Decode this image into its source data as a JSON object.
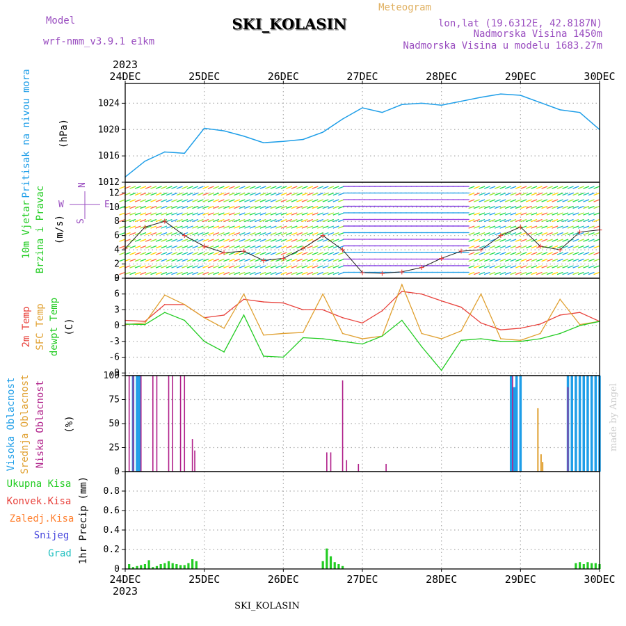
{
  "header": {
    "model_label": "Model",
    "model_name": "wrf-nmm_v3.9.1  e1km",
    "title": "SKI_KOLASIN",
    "meteogram": "Meteogram",
    "coords": "lon,lat (19.6312E, 42.8187N)",
    "altitude": "Nadmorska Visina 1450m",
    "model_altitude": "Nadmorska Visina u modelu 1683.27m"
  },
  "footer": {
    "station": "SKI_KOLASIN",
    "credit": "made by Angel"
  },
  "axis": {
    "year": "2023",
    "dates": [
      "24DEC",
      "25DEC",
      "26DEC",
      "27DEC",
      "28DEC",
      "29DEC",
      "30DEC"
    ]
  },
  "panel_labels": {
    "pressure": {
      "name": "Pritisak na nivou mora",
      "unit": "(hPa)"
    },
    "wind": {
      "name1": "10m Vjetar",
      "name2": "Brzina i Pravac",
      "unit": "(m/s)",
      "compass": {
        "n": "N",
        "s": "S",
        "w": "W",
        "e": "E"
      }
    },
    "temp": {
      "t2m": "2m Temp",
      "sfc": "SFC Temp",
      "dew": "dewpt Temp",
      "unit": "(C)"
    },
    "cloud": {
      "high": "Visoka Oblacnost",
      "mid": "Srednja Oblacnost",
      "low": "Niska Oblacnost",
      "unit": "(%)"
    },
    "precip": {
      "total": "Ukupna Kisa",
      "conv": "Konvek.Kisa",
      "frz": "Zaledj.Kisa",
      "snow": "Snijeg",
      "hail": "Grad",
      "unit": "1hr Precip (mm)"
    }
  },
  "colors": {
    "pressure": "#1e9ee8",
    "temp2m": "#e8403a",
    "sfc": "#e0a030",
    "dew": "#22cc22",
    "cloud_high": "#1e9ee8",
    "cloud_mid": "#e0a030",
    "cloud_low": "#b0208a",
    "precip_total": "#22cc22",
    "precip_conv": "#e8403a",
    "precip_frz": "#ff8030",
    "snow": "#4444dd",
    "hail": "#22c0c0",
    "wind_speed": "#222222"
  },
  "chart_data": [
    {
      "type": "line",
      "panel": "pressure",
      "ylabel": "(hPa)",
      "ylim": [
        1012,
        1027
      ],
      "yticks": [
        1012,
        1016,
        1020,
        1024
      ],
      "x_days": [
        0,
        0.25,
        0.5,
        0.75,
        1,
        1.25,
        1.5,
        1.75,
        2,
        2.25,
        2.5,
        2.75,
        3,
        3.25,
        3.5,
        3.75,
        4,
        4.25,
        4.5,
        4.75,
        5,
        5.25,
        5.5,
        5.75,
        6
      ],
      "series": [
        {
          "values": [
            1012.8,
            1015.2,
            1016.6,
            1016.4,
            1020.2,
            1019.8,
            1019.0,
            1018.0,
            1018.2,
            1018.5,
            1019.6,
            1021.6,
            1023.3,
            1022.6,
            1023.8,
            1024.0,
            1023.7,
            1024.3,
            1024.9,
            1025.4,
            1025.2,
            1024.1,
            1023.0,
            1022.6,
            1020.0
          ]
        }
      ]
    },
    {
      "type": "line",
      "panel": "wind",
      "ylabel": "(m/s)",
      "ylim": [
        0,
        13.5
      ],
      "yticks": [
        0,
        2,
        4,
        6,
        8,
        10,
        12
      ],
      "x_days": [
        0,
        0.25,
        0.5,
        0.75,
        1,
        1.25,
        1.5,
        1.75,
        2,
        2.25,
        2.5,
        2.75,
        3,
        3.25,
        3.5,
        3.75,
        4,
        4.25,
        4.5,
        4.75,
        5,
        5.25,
        5.5,
        5.75,
        6
      ],
      "series": [
        {
          "values": [
            4.2,
            7.2,
            8.0,
            6.0,
            4.5,
            3.6,
            3.8,
            2.5,
            2.8,
            4.2,
            6.0,
            4.0,
            0.8,
            0.7,
            0.9,
            1.5,
            2.8,
            3.8,
            4.0,
            6.0,
            7.2,
            4.5,
            4.0,
            6.5,
            6.8
          ]
        }
      ]
    },
    {
      "type": "line",
      "panel": "temperature",
      "ylabel": "(C)",
      "ylim": [
        -9.5,
        9
      ],
      "yticks": [
        -9,
        -6,
        -3,
        0,
        3,
        6,
        9
      ],
      "x_days": [
        0,
        0.25,
        0.5,
        0.75,
        1,
        1.25,
        1.5,
        1.75,
        2,
        2.25,
        2.5,
        2.75,
        3,
        3.25,
        3.5,
        3.75,
        4,
        4.25,
        4.5,
        4.75,
        5,
        5.25,
        5.5,
        5.75,
        6
      ],
      "series": [
        {
          "name": "2m Temp",
          "values": [
            1.0,
            0.8,
            4.0,
            4.0,
            1.5,
            2.0,
            5.0,
            4.5,
            4.3,
            3.0,
            3.0,
            1.5,
            0.5,
            2.8,
            6.5,
            6.0,
            4.7,
            3.5,
            0.5,
            -0.8,
            -0.5,
            0.3,
            2.0,
            2.5,
            0.8
          ]
        },
        {
          "name": "SFC Temp",
          "values": [
            0.2,
            0.5,
            5.8,
            4.0,
            1.5,
            -0.5,
            6.0,
            -1.8,
            -1.5,
            -1.3,
            6.0,
            -1.5,
            -2.5,
            -2.0,
            7.8,
            -1.5,
            -2.5,
            -1.0,
            6.0,
            -2.5,
            -2.8,
            -1.5,
            5.0,
            0.2,
            0.8
          ]
        },
        {
          "name": "dewpt Temp",
          "values": [
            0.3,
            0.2,
            2.5,
            1.0,
            -3.0,
            -5.0,
            2.0,
            -5.8,
            -6.0,
            -2.3,
            -2.5,
            -3.0,
            -3.5,
            -2.0,
            1.0,
            -4.0,
            -8.5,
            -2.8,
            -2.5,
            -3.0,
            -3.0,
            -2.5,
            -1.5,
            0.0,
            0.8
          ]
        }
      ]
    },
    {
      "type": "bar",
      "panel": "cloud",
      "ylabel": "(%)",
      "ylim": [
        0,
        100
      ],
      "yticks": [
        0,
        25,
        50,
        75,
        100
      ],
      "series": [
        {
          "name": "Visoka Oblacnost",
          "x_days": [
            0.1,
            0.15,
            0.18,
            4.88,
            4.92,
            4.95,
            5.0,
            5.6,
            5.65,
            5.7,
            5.75,
            5.8,
            5.85,
            5.9,
            5.95,
            6.0
          ],
          "values": [
            100,
            100,
            100,
            100,
            88,
            100,
            100,
            100,
            100,
            100,
            100,
            100,
            100,
            100,
            100,
            100
          ]
        },
        {
          "name": "Srednja Oblacnost",
          "x_days": [
            5.22,
            5.26,
            5.28
          ],
          "values": [
            66,
            18,
            10
          ]
        },
        {
          "name": "Niska Oblacnost",
          "x_days": [
            0.05,
            0.1,
            0.2,
            0.35,
            0.4,
            0.55,
            0.6,
            0.7,
            0.75,
            0.85,
            0.88,
            2.55,
            2.6,
            2.75,
            2.8,
            2.95,
            3.3,
            4.9,
            5.6
          ],
          "values": [
            100,
            100,
            100,
            100,
            100,
            100,
            100,
            100,
            100,
            34,
            22,
            20,
            20,
            95,
            12,
            8,
            8,
            100,
            88
          ]
        }
      ]
    },
    {
      "type": "bar",
      "panel": "precipitation",
      "ylabel": "1hr Precip (mm)",
      "ylim": [
        0,
        1
      ],
      "yticks": [
        0,
        0.2,
        0.4,
        0.6,
        0.8
      ],
      "series": [
        {
          "name": "Ukupna Kisa",
          "x_days": [
            0.05,
            0.1,
            0.15,
            0.2,
            0.25,
            0.3,
            0.35,
            0.4,
            0.45,
            0.5,
            0.55,
            0.6,
            0.65,
            0.7,
            0.75,
            0.8,
            0.85,
            0.9,
            2.5,
            2.55,
            2.6,
            2.65,
            2.7,
            2.75,
            5.7,
            5.75,
            5.8,
            5.85,
            5.9,
            5.95,
            6.0
          ],
          "values": [
            0.05,
            0.02,
            0.03,
            0.04,
            0.05,
            0.09,
            0.02,
            0.03,
            0.05,
            0.06,
            0.08,
            0.06,
            0.05,
            0.04,
            0.04,
            0.06,
            0.1,
            0.08,
            0.08,
            0.21,
            0.13,
            0.07,
            0.05,
            0.03,
            0.06,
            0.07,
            0.05,
            0.07,
            0.06,
            0.06,
            0.05
          ]
        }
      ]
    }
  ]
}
